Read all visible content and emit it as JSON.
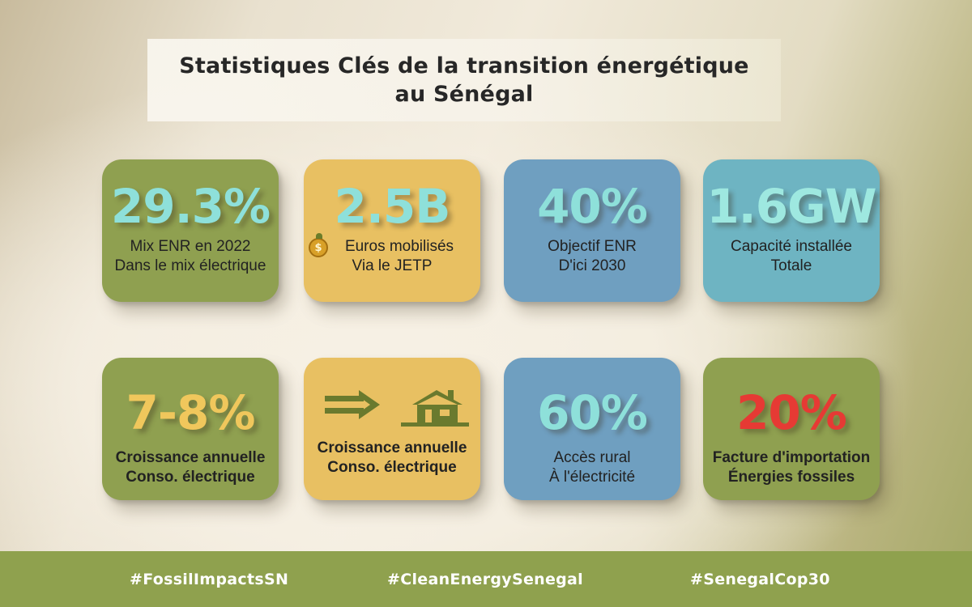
{
  "title": {
    "line1": "Statistiques Clés de la transition énergétique",
    "line2": "au Sénégal"
  },
  "cards": [
    {
      "value": "29.3%",
      "label1": "Mix ENR en 2022",
      "label2": "Dans le mix électrique"
    },
    {
      "value": "2.5B",
      "label1": "Euros mobilisés",
      "label2": "Via le JETP",
      "icon": "dollar-coin-icon"
    },
    {
      "value": "40%",
      "label1": "Objectif ENR",
      "label2": "D'ici 2030"
    },
    {
      "value": "1.6GW",
      "label1": "Capacité installée",
      "label2": "Totale"
    },
    {
      "value": "7-8%",
      "label1": "Croissance annuelle",
      "label2": "Conso. électrique"
    },
    {
      "label1": "Croissance annuelle",
      "label2": "Conso. électrique",
      "icons": [
        "double-arrow-right-icon",
        "house-icon"
      ]
    },
    {
      "value": "60%",
      "label1": "Accès rural",
      "label2": "À l'électricité"
    },
    {
      "value": "20%",
      "label1": "Facture d'importation",
      "label2": "Énergies fossiles"
    }
  ],
  "footer": {
    "hashtags": [
      "#FossilImpactsSN",
      "#CleanEnergySenegal",
      "#SenegalCop30"
    ]
  },
  "colors": {
    "olive": "#8fa050",
    "yellow": "#e8c062",
    "blue": "#6f9fc0",
    "teal": "#6eb4c2",
    "value_teal": "#8ee0da",
    "value_yellow": "#f0c75c",
    "value_red": "#e63a34",
    "footer_bg": "#8fa14e"
  }
}
